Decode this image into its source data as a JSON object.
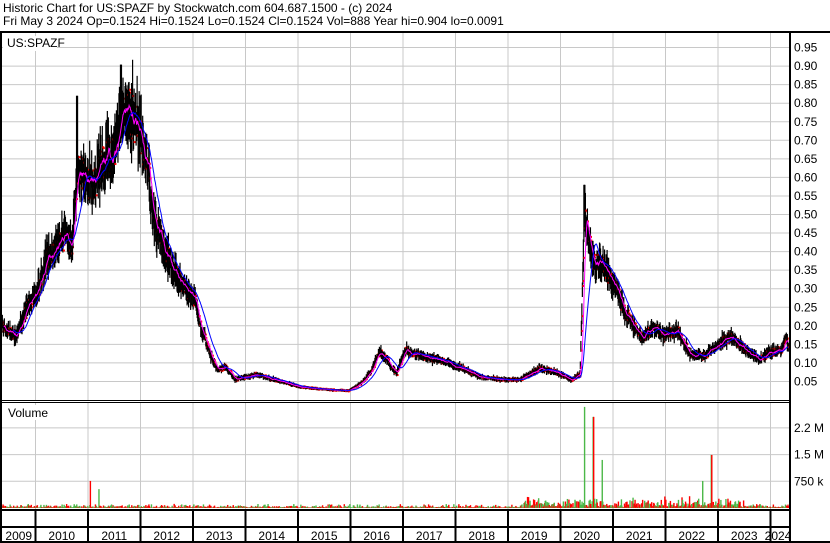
{
  "header": {
    "title": "Historic Chart for US:SPAZF by Stockwatch.com 604.687.1500 - (c) 2024",
    "quote_line": "Fri May  3 2024  Op=0.1524  Hi=0.1524  Lo=0.1524  Cl=0.1524  Vol=888  Year hi=0.904  lo=0.0091"
  },
  "colors": {
    "bars": "#000000",
    "close_tick": "#ff0000",
    "ma_short": "#ff00ff",
    "ma_long": "#0000ff",
    "vol_up": "#4cb848",
    "vol_down": "#ff0000",
    "grid": "#c8c8c8"
  },
  "chart_data": [
    {
      "type": "line",
      "panel": "price",
      "symbol_label": "US:SPAZF",
      "y_ticks": [
        "0.05",
        "0.10",
        "0.15",
        "0.20",
        "0.25",
        "0.30",
        "0.35",
        "0.40",
        "0.45",
        "0.50",
        "0.55",
        "0.60",
        "0.65",
        "0.70",
        "0.75",
        "0.80",
        "0.85",
        "0.90",
        "0.95"
      ],
      "ylim": [
        0,
        0.98
      ],
      "grid": true,
      "series_style": "OHLC bars with red close ticks, magenta short moving average, blue long moving average",
      "approx_close": [
        [
          "2009-05",
          0.2
        ],
        [
          "2009-08",
          0.17
        ],
        [
          "2009-10",
          0.235
        ],
        [
          "2010-01",
          0.29
        ],
        [
          "2010-03",
          0.385
        ],
        [
          "2010-05",
          0.4
        ],
        [
          "2010-07",
          0.44
        ],
        [
          "2010-09",
          0.42
        ],
        [
          "2010-10",
          0.63
        ],
        [
          "2010-12",
          0.59
        ],
        [
          "2011-02",
          0.585
        ],
        [
          "2011-04",
          0.65
        ],
        [
          "2011-06",
          0.66
        ],
        [
          "2011-08",
          0.76
        ],
        [
          "2011-10",
          0.78
        ],
        [
          "2011-12",
          0.72
        ],
        [
          "2012-02",
          0.65
        ],
        [
          "2012-03",
          0.52
        ],
        [
          "2012-04",
          0.47
        ],
        [
          "2012-06",
          0.405
        ],
        [
          "2012-08",
          0.35
        ],
        [
          "2012-11",
          0.3
        ],
        [
          "2013-01",
          0.27
        ],
        [
          "2013-02",
          0.21
        ],
        [
          "2013-04",
          0.135
        ],
        [
          "2013-06",
          0.08
        ],
        [
          "2013-08",
          0.09
        ],
        [
          "2013-10",
          0.055
        ],
        [
          "2013-12",
          0.06
        ],
        [
          "2014-03",
          0.07
        ],
        [
          "2014-06",
          0.058
        ],
        [
          "2015-01",
          0.035
        ],
        [
          "2015-08",
          0.027
        ],
        [
          "2015-12",
          0.025
        ],
        [
          "2016-03",
          0.046
        ],
        [
          "2016-05",
          0.073
        ],
        [
          "2016-07",
          0.127
        ],
        [
          "2016-08",
          0.12
        ],
        [
          "2016-11",
          0.07
        ],
        [
          "2017-01",
          0.135
        ],
        [
          "2017-04",
          0.12
        ],
        [
          "2017-09",
          0.108
        ],
        [
          "2018-02",
          0.086
        ],
        [
          "2018-06",
          0.062
        ],
        [
          "2018-11",
          0.055
        ],
        [
          "2019-03",
          0.055
        ],
        [
          "2019-08",
          0.086
        ],
        [
          "2019-11",
          0.076
        ],
        [
          "2020-03",
          0.055
        ],
        [
          "2020-05",
          0.07
        ],
        [
          "2020-06",
          0.5
        ],
        [
          "2020-08",
          0.37
        ],
        [
          "2020-11",
          0.35
        ],
        [
          "2021-01",
          0.305
        ],
        [
          "2021-03",
          0.24
        ],
        [
          "2021-07",
          0.17
        ],
        [
          "2021-10",
          0.195
        ],
        [
          "2021-12",
          0.17
        ],
        [
          "2022-03",
          0.19
        ],
        [
          "2022-06",
          0.127
        ],
        [
          "2022-09",
          0.116
        ],
        [
          "2023-03",
          0.17
        ],
        [
          "2023-07",
          0.135
        ],
        [
          "2023-10",
          0.108
        ],
        [
          "2023-12",
          0.127
        ],
        [
          "2024-03",
          0.135
        ],
        [
          "2024-04",
          0.17
        ],
        [
          "2024-05",
          0.1524
        ]
      ],
      "notable_highs": [
        [
          "2010-10",
          0.82
        ],
        [
          "2011-08",
          0.904
        ],
        [
          "2020-06",
          0.58
        ]
      ]
    },
    {
      "type": "bar",
      "panel": "volume",
      "title": "Volume",
      "y_ticks": [
        "750 k",
        "1.5 M",
        "2.2 M"
      ],
      "x_ticks": [
        "2009",
        "2010",
        "2011",
        "2012",
        "2013",
        "2014",
        "2015",
        "2016",
        "2017",
        "2018",
        "2019",
        "2020",
        "2021",
        "2022",
        "2023",
        "2024"
      ],
      "notable_volumes": [
        [
          "2011-01",
          760000,
          "up"
        ],
        [
          "2011-03",
          530000,
          "down"
        ],
        [
          "2020-06",
          2840000,
          "up"
        ],
        [
          "2020-08",
          2560000,
          "down"
        ],
        [
          "2020-10",
          1350000,
          "down"
        ],
        [
          "2022-09",
          760000,
          "down"
        ],
        [
          "2022-11",
          1490000,
          "up"
        ]
      ]
    }
  ]
}
